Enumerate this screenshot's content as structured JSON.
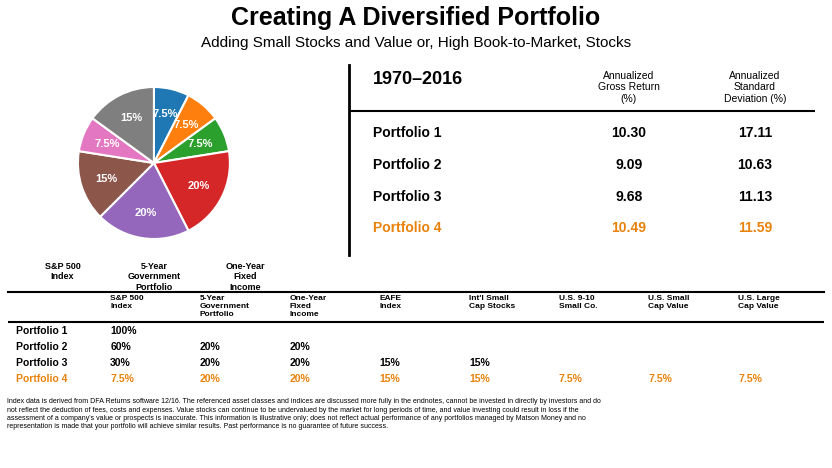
{
  "chart_data": {
    "type": "pie",
    "title": "Creating A Diversified Portfolio",
    "subtitle": "Adding Small Stocks and Value or, High Book-to-Market, Stocks",
    "values": [
      7.5,
      7.5,
      7.5,
      20.0,
      20.0,
      15.0,
      7.5,
      15.0
    ],
    "value_labels": [
      "7.5%",
      "7.5%",
      "7.5%",
      "20%",
      "20%",
      "15%",
      "7.5%",
      "15%"
    ],
    "data_labels": true,
    "annotations": [
      "S&P 500\nIndex",
      "5-Year\nGovernment\nPortfolio",
      "One-Year\nFixed\nIncome"
    ],
    "tables": [
      {
        "title": "1970–2016",
        "columns": [
          "Annualized\nGross Return\n(%)",
          "Annualized\nStandard\nDeviation (%)"
        ],
        "rows": [
          {
            "label": "Portfolio 1",
            "cells": [
              "10.30",
              "17.11"
            ]
          },
          {
            "label": "Portfolio 2",
            "cells": [
              "9.09",
              "10.63"
            ]
          },
          {
            "label": "Portfolio 3",
            "cells": [
              "9.68",
              "11.13"
            ]
          },
          {
            "label": "Portfolio 4",
            "cells": [
              "10.49",
              "11.59"
            ],
            "color": "#E8820A"
          }
        ]
      },
      {
        "columns": [
          "S&P 500\nIndex",
          "5-Year\nGovernment\nPortfolio",
          "One-Year\nFixed\nIncome",
          "EAFE\nIndex",
          "Int'l Small\nCap Stocks",
          "U.S. 9-10\nSmall Co.",
          "U.S. Small\nCap Value",
          "U.S. Large\nCap Value"
        ],
        "rows": [
          {
            "label": "Portfolio 1",
            "cells": [
              "100%",
              null,
              null,
              null,
              null,
              null,
              null,
              null
            ]
          },
          {
            "label": "Portfolio 2",
            "cells": [
              "60%",
              "20%",
              "20%",
              null,
              null,
              null,
              null,
              null
            ]
          },
          {
            "label": "Portfolio 3",
            "cells": [
              "30%",
              "20%",
              "20%",
              "15%",
              "15%",
              null,
              null,
              null
            ]
          },
          {
            "label": "Portfolio 4",
            "cells": [
              "7.5%",
              "20%",
              "20%",
              "15%",
              "15%",
              "7.5%",
              "7.5%",
              "7.5%"
            ],
            "color": "#E8820A"
          }
        ]
      }
    ],
    "footer": [
      "Index data is derived from DFA Returns software 12/16. The referenced asset classes and indices are discussed more fully in the endnotes, cannot be invested in directly by investors and do",
      "not reflect the deduction of fees, costs and expenses. Value stocks can continue to be undervalued by the market for long periods of time, and value investing could result in loss if the",
      "assessment of a company's value or prospects is inaccurate. This information is illustrative only; does not reflect actual performance of any portfolios managed by Matson Money and no",
      "representation is made that your portfolio will achieve similar results. Past performance is no guarantee of future success."
    ]
  }
}
